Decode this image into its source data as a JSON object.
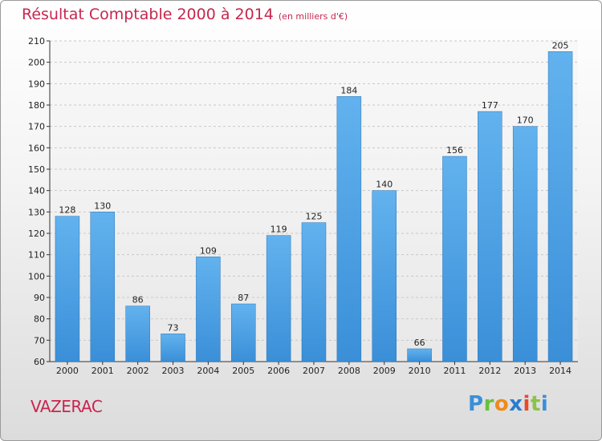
{
  "title": "Résultat Comptable 2000 à 2014",
  "subtitle": "(en milliers d'€)",
  "commune": "VAZERAC",
  "logo": {
    "p": "P",
    "r": "r",
    "o": "o",
    "x": "x",
    "i1": "i",
    "t": "t",
    "i2": "i"
  },
  "colors": {
    "bar": "#3a8fd8",
    "bar_light": "#62b2ee",
    "title": "#c8264e",
    "grid": "#c8c8c8"
  },
  "chart_data": {
    "type": "bar",
    "title": "Résultat Comptable 2000 à 2014",
    "xlabel": "",
    "ylabel": "",
    "categories": [
      "2000",
      "2001",
      "2002",
      "2003",
      "2004",
      "2005",
      "2006",
      "2007",
      "2008",
      "2009",
      "2010",
      "2011",
      "2012",
      "2013",
      "2014"
    ],
    "values": [
      128,
      130,
      86,
      73,
      109,
      87,
      119,
      125,
      184,
      140,
      66,
      156,
      177,
      170,
      205
    ],
    "ylim": [
      60,
      210
    ],
    "yticks": [
      60,
      70,
      80,
      90,
      100,
      110,
      120,
      130,
      140,
      150,
      160,
      170,
      180,
      190,
      200,
      210
    ],
    "grid": true
  }
}
